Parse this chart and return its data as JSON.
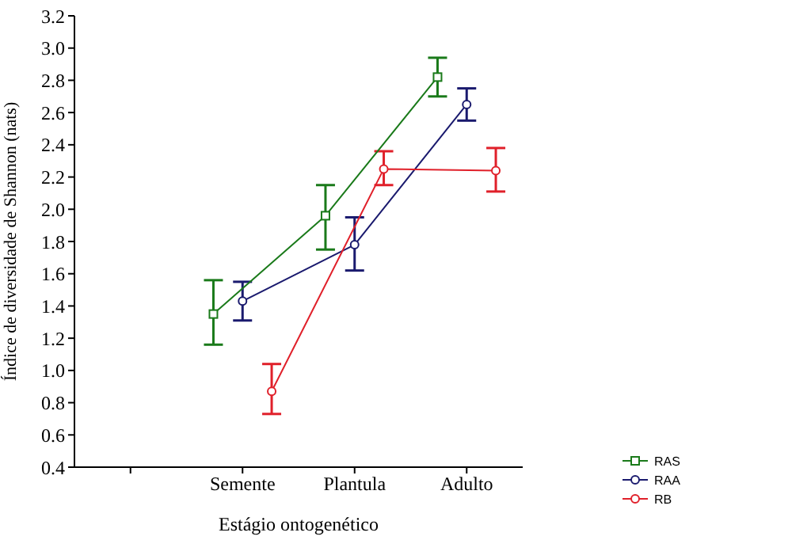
{
  "chart_data": {
    "type": "line",
    "xlabel": "Estágio ontogenético",
    "ylabel": "Índice de diversidade de Shannon (nats)",
    "categories": [
      null,
      "Semente",
      "Plantula",
      "Adulto"
    ],
    "series": [
      {
        "name": "RAS",
        "color": "#1a7a1a",
        "marker": "square",
        "values": [
          null,
          1.35,
          1.96,
          2.82
        ],
        "errors": [
          null,
          [
            1.16,
            1.56
          ],
          [
            1.75,
            2.15
          ],
          [
            2.7,
            2.94
          ]
        ]
      },
      {
        "name": "RAA",
        "color": "#1a1a6e",
        "marker": "circle",
        "values": [
          null,
          1.43,
          1.78,
          2.65
        ],
        "errors": [
          null,
          [
            1.31,
            1.55
          ],
          [
            1.62,
            1.95
          ],
          [
            2.55,
            2.75
          ]
        ]
      },
      {
        "name": "RB",
        "color": "#e0202a",
        "marker": "circle",
        "values": [
          null,
          0.87,
          2.25,
          2.24
        ],
        "errors": [
          null,
          [
            0.73,
            1.04
          ],
          [
            2.15,
            2.36
          ],
          [
            2.11,
            2.38
          ]
        ]
      }
    ],
    "ylim": [
      0.4,
      3.2
    ],
    "yticks": [
      0.4,
      0.6,
      0.8,
      {
        "value": 1,
        "label": "1.0"
      },
      1.2,
      1.4,
      1.6,
      1.8,
      {
        "value": 2,
        "label": "2.0"
      },
      2.2,
      2.4,
      2.6,
      2.8,
      {
        "value": 3,
        "label": "3.0"
      },
      3.2
    ],
    "grid": false,
    "legend": "bottom right",
    "line_style": "solid"
  }
}
